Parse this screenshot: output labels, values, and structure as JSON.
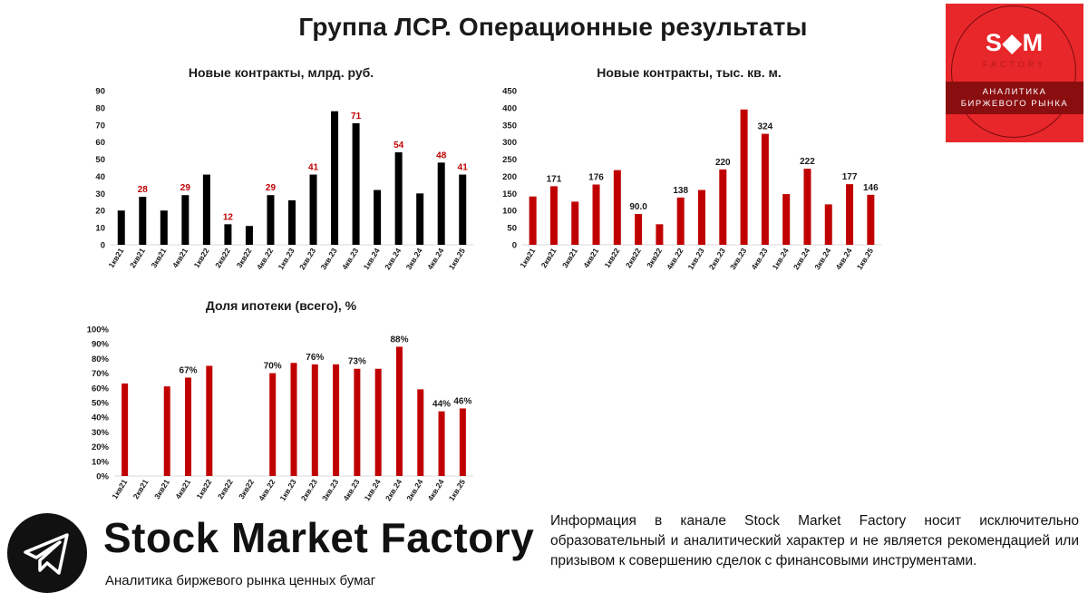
{
  "page": {
    "title": "Группа ЛСР. Операционные результаты"
  },
  "colors": {
    "black_bar": "#000000",
    "red_bar": "#c00000",
    "label_red": "#c00000",
    "label_dark": "#1a1a1a",
    "axis": "#d9d9d9",
    "logo_red": "#e8272b"
  },
  "logo": {
    "mark": "S◆M",
    "sub": "FACTORY",
    "band_line1": "АНАЛИТИКА",
    "band_line2": "БИРЖЕВОГО РЫНКА",
    "icon": "bull-head-icon"
  },
  "footer": {
    "brand": "Stock Market Factory",
    "tagline": "Аналитика биржевого рынка ценных бумаг",
    "disclaimer": "Информация в канале Stock Market Factory носит исключительно образовательный и аналитический характер и не является рекомендацией или призывом к совершению сделок с финансовыми инструментами.",
    "icon": "telegram-icon"
  },
  "chart_data": [
    {
      "type": "bar",
      "title": "Новые контракты, млрд. руб.",
      "categories": [
        "1кв21",
        "2кв21",
        "3кв21",
        "4кв21",
        "1кв22",
        "2кв22",
        "3кв22",
        "4кв.22",
        "1кв.23",
        "2кв.23",
        "3кв.23",
        "4кв.23",
        "1кв.24",
        "2кв.24",
        "3кв.24",
        "4кв.24",
        "1кв.25"
      ],
      "values": [
        20,
        28,
        20,
        29,
        41,
        12,
        11,
        29,
        26,
        41,
        78,
        71,
        32,
        54,
        30,
        48,
        41
      ],
      "data_labels": [
        "",
        "28",
        "",
        "29",
        "",
        "12",
        "",
        "29",
        "",
        "41",
        "",
        "71",
        "",
        "54",
        "",
        "48",
        "41"
      ],
      "yticks": [
        "0",
        "10",
        "20",
        "30",
        "40",
        "50",
        "60",
        "70",
        "80",
        "90"
      ],
      "ylim": [
        0,
        90
      ],
      "bar_color": "#000000",
      "label_color": "#c00000",
      "grid": false
    },
    {
      "type": "bar",
      "title": "Новые контракты, тыс. кв. м.",
      "categories": [
        "1кв21",
        "2кв21",
        "3кв21",
        "4кв21",
        "1кв22",
        "2кв22",
        "3кв22",
        "4кв.22",
        "1кв.23",
        "2кв.23",
        "3кв.23",
        "4кв.23",
        "1кв.24",
        "2кв.24",
        "3кв.24",
        "4кв.24",
        "1кв.25"
      ],
      "values": [
        141,
        171,
        126,
        176,
        218,
        90,
        60,
        138,
        160,
        220,
        395,
        324,
        148,
        222,
        118,
        177,
        146
      ],
      "data_labels": [
        "",
        "171",
        "",
        "176",
        "",
        "90.0",
        "",
        "138",
        "",
        "220",
        "",
        "324",
        "",
        "222",
        "",
        "177",
        "146"
      ],
      "yticks": [
        "0",
        "50",
        "100",
        "150",
        "200",
        "250",
        "300",
        "350",
        "400",
        "450"
      ],
      "ylim": [
        0,
        450
      ],
      "bar_color": "#c00000",
      "label_color": "#1a1a1a",
      "grid": false
    },
    {
      "type": "bar",
      "title": "Доля ипотеки (всего), %",
      "categories": [
        "1кв21",
        "2кв21",
        "3кв21",
        "4кв21",
        "1кв22",
        "2кв22",
        "3кв22",
        "4кв.22",
        "1кв.23",
        "2кв.23",
        "3кв.23",
        "4кв.23",
        "1кв.24",
        "2кв.24",
        "3кв.24",
        "4кв.24",
        "1кв.25"
      ],
      "values": [
        63,
        null,
        61,
        67,
        75,
        null,
        null,
        70,
        77,
        76,
        76,
        73,
        73,
        88,
        59,
        44,
        46
      ],
      "data_labels": [
        "",
        "",
        "",
        "67%",
        "",
        "",
        "",
        "70%",
        "",
        "76%",
        "",
        "73%",
        "",
        "88%",
        "",
        "44%",
        "46%"
      ],
      "yticks": [
        "0%",
        "10%",
        "20%",
        "30%",
        "40%",
        "50%",
        "60%",
        "70%",
        "80%",
        "90%",
        "100%"
      ],
      "ylim": [
        0,
        100
      ],
      "bar_color": "#c00000",
      "label_color": "#1a1a1a",
      "grid": false
    }
  ]
}
